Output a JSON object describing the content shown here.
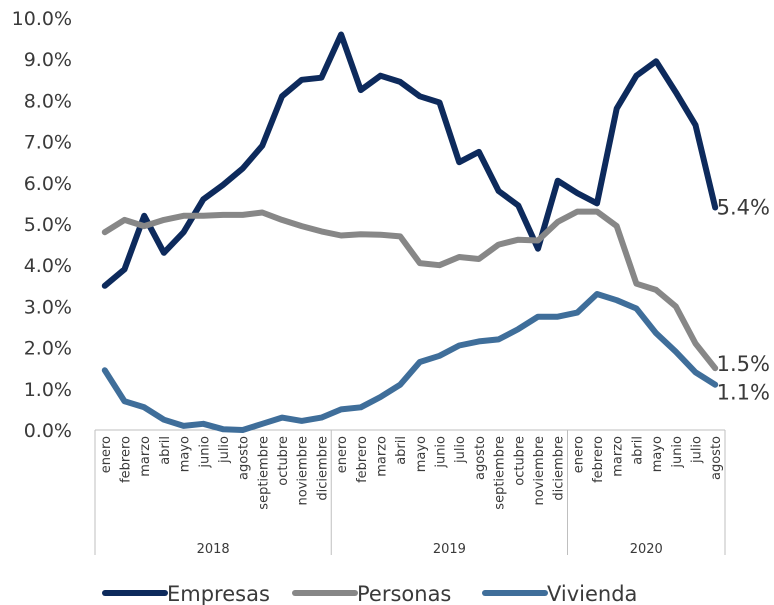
{
  "chart_data": {
    "type": "line",
    "title": "",
    "xlabel": "",
    "ylabel": "",
    "ylim": [
      0,
      10
    ],
    "y_ticks": [
      "0.0%",
      "1.0%",
      "2.0%",
      "3.0%",
      "4.0%",
      "5.0%",
      "6.0%",
      "7.0%",
      "8.0%",
      "9.0%",
      "10.0%"
    ],
    "years": [
      {
        "label": "2018",
        "count": 12
      },
      {
        "label": "2019",
        "count": 12
      },
      {
        "label": "2020",
        "count": 8
      }
    ],
    "categories": [
      "enero",
      "febrero",
      "marzo",
      "abril",
      "mayo",
      "junio",
      "julio",
      "agosto",
      "septiembre",
      "octubre",
      "noviembre",
      "diciembre",
      "enero",
      "febrero",
      "marzo",
      "abril",
      "mayo",
      "junio",
      "julio",
      "agosto",
      "septiembre",
      "octubre",
      "noviembre",
      "diciembre",
      "enero",
      "febrero",
      "marzo",
      "abril",
      "mayo",
      "junio",
      "julio",
      "agosto"
    ],
    "series": [
      {
        "name": "Empresas",
        "color": "#0d2a5c",
        "end_label": "5.4%",
        "values": [
          3.5,
          3.9,
          5.2,
          4.3,
          4.8,
          5.6,
          5.95,
          6.35,
          6.9,
          8.1,
          8.5,
          8.55,
          9.6,
          8.25,
          8.6,
          8.45,
          8.1,
          7.95,
          6.5,
          6.75,
          5.8,
          5.45,
          4.4,
          6.05,
          5.75,
          5.5,
          7.8,
          8.6,
          8.95,
          8.2,
          7.4,
          5.4
        ]
      },
      {
        "name": "Personas",
        "color": "#878787",
        "end_label": "1.5%",
        "values": [
          4.8,
          5.1,
          4.95,
          5.1,
          5.2,
          5.2,
          5.22,
          5.22,
          5.28,
          5.1,
          4.95,
          4.82,
          4.72,
          4.75,
          4.74,
          4.7,
          4.05,
          4.0,
          4.2,
          4.15,
          4.5,
          4.62,
          4.6,
          5.05,
          5.3,
          5.3,
          4.95,
          3.55,
          3.4,
          3.0,
          2.1,
          1.5
        ]
      },
      {
        "name": "Vivienda",
        "color": "#3f6e9a",
        "end_label": "1.1%",
        "values": [
          1.45,
          0.7,
          0.55,
          0.25,
          0.1,
          0.15,
          0.02,
          0.0,
          0.15,
          0.3,
          0.22,
          0.3,
          0.5,
          0.55,
          0.8,
          1.1,
          1.65,
          1.8,
          2.05,
          2.15,
          2.2,
          2.45,
          2.75,
          2.75,
          2.85,
          3.3,
          3.15,
          2.95,
          2.35,
          1.9,
          1.4,
          1.1
        ]
      }
    ],
    "legend_position": "bottom",
    "grid": false
  }
}
